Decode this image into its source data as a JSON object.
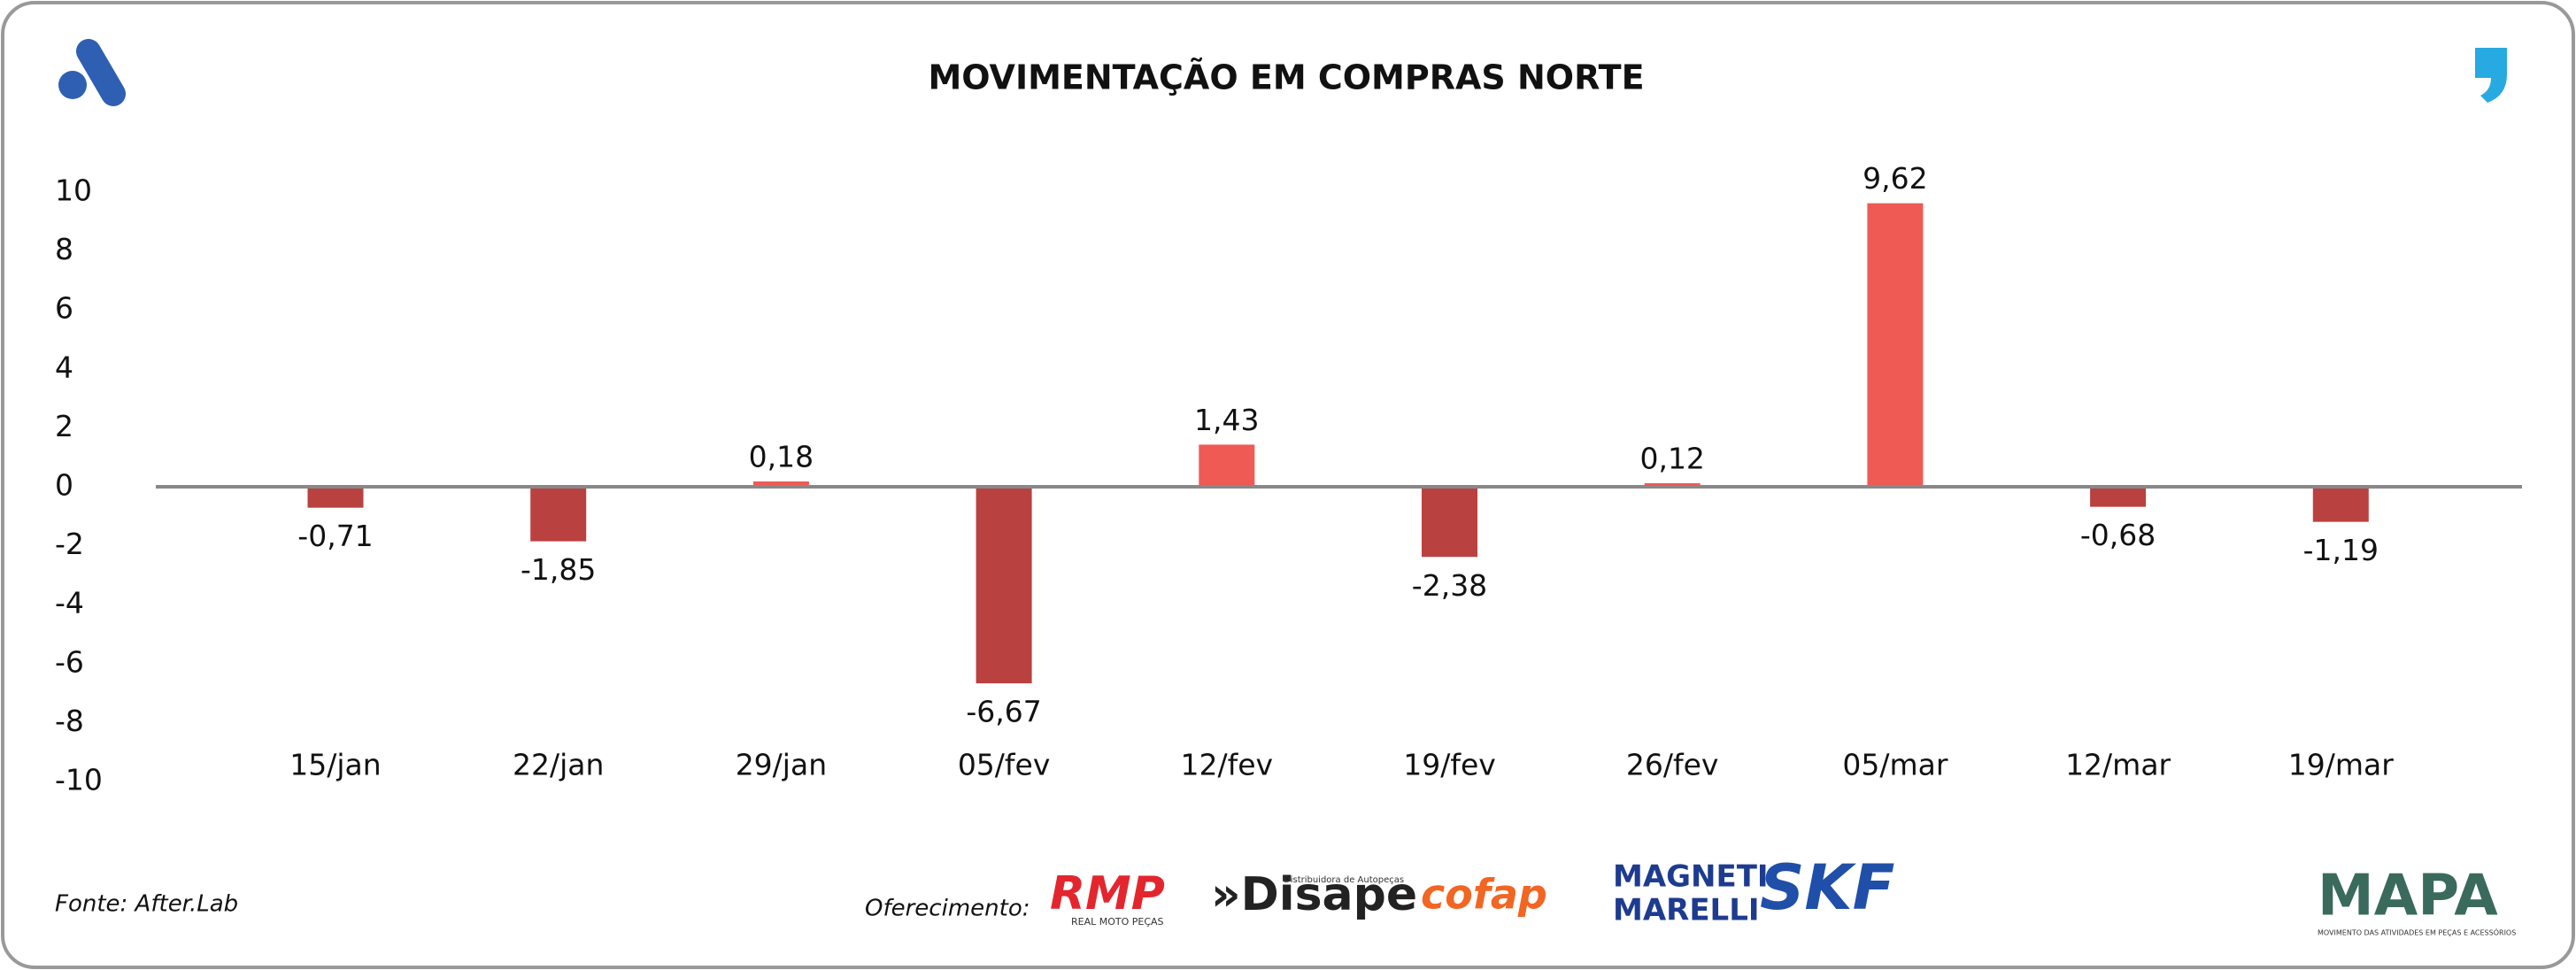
{
  "chart_data": {
    "type": "bar",
    "title": "MOVIMENTAÇÃO EM COMPRAS NORTE",
    "categories": [
      "15/jan",
      "22/jan",
      "29/jan",
      "05/fev",
      "12/fev",
      "19/fev",
      "26/fev",
      "05/mar",
      "12/mar",
      "19/mar"
    ],
    "values": [
      -0.71,
      -1.85,
      0.18,
      -6.67,
      1.43,
      -2.38,
      0.12,
      9.62,
      -0.68,
      -1.19
    ],
    "value_labels": [
      "-0,71",
      "-1,85",
      "0,18",
      "-6,67",
      "1,43",
      "-2,38",
      "0,12",
      "9,62",
      "-0,68",
      "-1,19"
    ],
    "positive_color": "#ef5a55",
    "negative_color": "#b94140",
    "ylim": [
      -10,
      10
    ],
    "yticks": [
      -10,
      -8,
      -6,
      -4,
      -2,
      0,
      2,
      4,
      6,
      8,
      10
    ],
    "grid": false
  },
  "footer": {
    "source": "Fonte: After.Lab",
    "sponsor_label": "Oferecimento:",
    "sponsors": [
      "RMP",
      "REAL MOTO PEÇAS",
      "»Disape",
      "Distribuidora de Autopeças",
      "cofap",
      "MAGNETI",
      "MARELLI",
      "SKF",
      "MAPA",
      "MOVIMENTO DAS ATIVIDADES EM PEÇAS E ACESSÓRIOS"
    ]
  }
}
